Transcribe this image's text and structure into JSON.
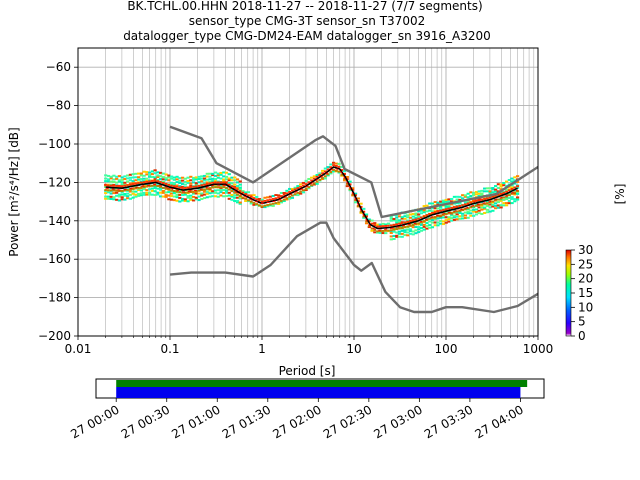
{
  "header": {
    "line1": "BK.TCHL.00.HHN   2018-11-27 -- 2018-11-27  (7/7 segments)",
    "line2": "sensor_type CMG-3T sensor_sn T37002",
    "line3": "datalogger_type CMG-DM24-EAM datalogger_sn 3916_A3200"
  },
  "colors": {
    "noise_model": "#6e6e6e",
    "mean": "#000000",
    "mode": "#ff0000",
    "grid": "#b0b0b0",
    "bar_green": "#008000",
    "bar_blue": "#0000ee"
  },
  "chart_data": [
    {
      "type": "line",
      "xlabel": "Period [s]",
      "ylabel": "Power [m²/s⁴/Hz] [dB]",
      "x_scale": "log",
      "xlim": [
        0.01,
        1000
      ],
      "ylim": [
        -200,
        -50
      ],
      "x_ticks": [
        0.01,
        0.1,
        1,
        10,
        100,
        1000
      ],
      "x_tick_labels": [
        "0.01",
        "0.1",
        "1",
        "10",
        "100",
        "1000"
      ],
      "y_ticks": [
        -200,
        -180,
        -160,
        -140,
        -120,
        -100,
        -80,
        -60
      ],
      "y_tick_labels": [
        "−200",
        "−180",
        "−160",
        "−140",
        "−120",
        "−100",
        "−80",
        "−60"
      ],
      "grid": true,
      "colorbar": {
        "label": "[%]",
        "min": 0,
        "max": 30,
        "ticks": [
          0,
          5,
          10,
          15,
          20,
          25,
          30
        ],
        "tick_labels": [
          "0",
          "5",
          "10",
          "15",
          "20",
          "25",
          "30"
        ]
      },
      "series": [
        {
          "role": "high_noise_model",
          "points": [
            [
              0.1,
              -91
            ],
            [
              0.22,
              -97
            ],
            [
              0.32,
              -110
            ],
            [
              0.8,
              -120
            ],
            [
              3.8,
              -98
            ],
            [
              4.6,
              -96
            ],
            [
              6.3,
              -101
            ],
            [
              7.9,
              -113
            ],
            [
              15.4,
              -120
            ],
            [
              20,
              -138
            ],
            [
              354.8,
              -126
            ],
            [
              1000,
              -112
            ]
          ]
        },
        {
          "role": "low_noise_model",
          "points": [
            [
              0.1,
              -168
            ],
            [
              0.17,
              -167
            ],
            [
              0.4,
              -167
            ],
            [
              0.8,
              -169
            ],
            [
              1.24,
              -163
            ],
            [
              2.4,
              -148
            ],
            [
              4.3,
              -141
            ],
            [
              5,
              -141
            ],
            [
              6,
              -149
            ],
            [
              10,
              -163
            ],
            [
              12,
              -166
            ],
            [
              15.6,
              -162
            ],
            [
              21.9,
              -177
            ],
            [
              31.6,
              -185
            ],
            [
              45,
              -187.5
            ],
            [
              70,
              -187.5
            ],
            [
              100,
              -185
            ],
            [
              150,
              -185
            ],
            [
              331.6,
              -187.5
            ],
            [
              600,
              -184.4
            ],
            [
              1000,
              -178
            ]
          ]
        },
        {
          "role": "mean",
          "points": [
            [
              0.02,
              -122.5
            ],
            [
              0.03,
              -123
            ],
            [
              0.05,
              -121
            ],
            [
              0.07,
              -120
            ],
            [
              0.1,
              -122.5
            ],
            [
              0.14,
              -124
            ],
            [
              0.2,
              -123
            ],
            [
              0.3,
              -121
            ],
            [
              0.4,
              -121
            ],
            [
              0.6,
              -126
            ],
            [
              0.8,
              -129
            ],
            [
              1,
              -131
            ],
            [
              1.5,
              -129
            ],
            [
              2,
              -126
            ],
            [
              3,
              -122
            ],
            [
              4,
              -118
            ],
            [
              5,
              -115
            ],
            [
              6,
              -112
            ],
            [
              7,
              -113
            ],
            [
              8,
              -117
            ],
            [
              10,
              -126
            ],
            [
              12,
              -134
            ],
            [
              15,
              -142
            ],
            [
              18,
              -144
            ],
            [
              25,
              -143.5
            ],
            [
              35,
              -142
            ],
            [
              50,
              -140
            ],
            [
              70,
              -137
            ],
            [
              100,
              -135
            ],
            [
              150,
              -133
            ],
            [
              200,
              -131
            ],
            [
              300,
              -129
            ],
            [
              450,
              -126
            ],
            [
              600,
              -123
            ]
          ]
        },
        {
          "role": "mode",
          "points": [
            [
              0.02,
              -123
            ],
            [
              0.03,
              -124
            ],
            [
              0.05,
              -122
            ],
            [
              0.07,
              -121
            ],
            [
              0.1,
              -123
            ],
            [
              0.14,
              -125
            ],
            [
              0.2,
              -124
            ],
            [
              0.3,
              -121.5
            ],
            [
              0.4,
              -121.5
            ],
            [
              0.6,
              -126.5
            ],
            [
              0.8,
              -129.5
            ],
            [
              1,
              -131
            ],
            [
              1.5,
              -129.5
            ],
            [
              2,
              -126.5
            ],
            [
              3,
              -122.5
            ],
            [
              4,
              -118.5
            ],
            [
              5,
              -115.5
            ],
            [
              6,
              -112.5
            ],
            [
              7,
              -113.5
            ],
            [
              8,
              -118
            ],
            [
              10,
              -127
            ],
            [
              12,
              -135
            ],
            [
              15,
              -143
            ],
            [
              18,
              -145
            ],
            [
              25,
              -144
            ],
            [
              35,
              -142.5
            ],
            [
              50,
              -141
            ],
            [
              70,
              -138
            ],
            [
              100,
              -136
            ],
            [
              150,
              -134
            ],
            [
              200,
              -132
            ],
            [
              300,
              -130
            ],
            [
              450,
              -127
            ],
            [
              600,
              -124
            ]
          ]
        }
      ]
    },
    {
      "type": "timeline",
      "x_tick_labels": [
        "27 00:00",
        "27 00:30",
        "27 01:00",
        "27 01:30",
        "27 02:00",
        "27 02:30",
        "27 03:00",
        "27 03:30",
        "27 04:00"
      ],
      "x_ticks_minutes": [
        0,
        30,
        60,
        90,
        120,
        150,
        180,
        210,
        240
      ],
      "xlim_minutes": [
        -12,
        254
      ],
      "bars": [
        {
          "role": "data_availability",
          "color": "#008000",
          "start_minutes": 0,
          "end_minutes": 244
        },
        {
          "role": "psd_used",
          "color": "#0000ee",
          "start_minutes": 0,
          "end_minutes": 240
        }
      ]
    }
  ]
}
